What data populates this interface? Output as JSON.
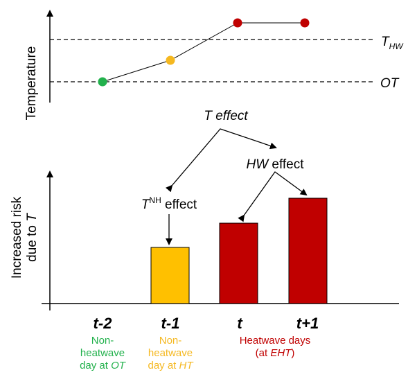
{
  "top_panel": {
    "ylabel": "Temperature",
    "threshold_labels": {
      "thw_main": "T",
      "thw_sub": "HW",
      "ot": "OT"
    },
    "points": [
      {
        "day": "t-2",
        "level": "OT",
        "color": "#22b14c"
      },
      {
        "day": "t-1",
        "level": "HT",
        "color": "#f5b820"
      },
      {
        "day": "t",
        "level": "EHT",
        "color": "#c00000"
      },
      {
        "day": "t+1",
        "level": "EHT",
        "color": "#c00000"
      }
    ]
  },
  "annotations": {
    "t_effect": "T effect",
    "tnh_main": "T",
    "tnh_sup": "NH",
    "tnh_suffix": " effect",
    "hw_italic": "HW",
    "hw_suffix": " effect"
  },
  "bottom_panel": {
    "ylabel_line1": "Increased risk",
    "ylabel_line2_prefix": "due to ",
    "ylabel_line2_italic": "T",
    "day_labels": [
      "t-2",
      "t-1",
      "t",
      "t+1"
    ],
    "bars": [
      {
        "day": "t-2",
        "value": 0,
        "color": null
      },
      {
        "day": "t-1",
        "value": 1,
        "color": "#ffc000"
      },
      {
        "day": "t",
        "value": 1.55,
        "color": "#c00000"
      },
      {
        "day": "t+1",
        "value": 1.85,
        "color": "#c00000"
      }
    ],
    "captions": {
      "green_line1": "Non-",
      "green_line2": "heatwave",
      "green_line3_prefix": "day at ",
      "green_line3_italic": "OT",
      "yellow_line1": "Non-",
      "yellow_line2": "heatwave",
      "yellow_line3_prefix": "day at ",
      "yellow_line3_italic": "HT",
      "red_line1": "Heatwave days",
      "red_line2_prefix": "(at ",
      "red_line2_italic": "EHT",
      "red_line2_suffix": ")"
    },
    "caption_colors": {
      "green": "#22b14c",
      "yellow": "#f5b820",
      "red": "#c00000"
    }
  }
}
